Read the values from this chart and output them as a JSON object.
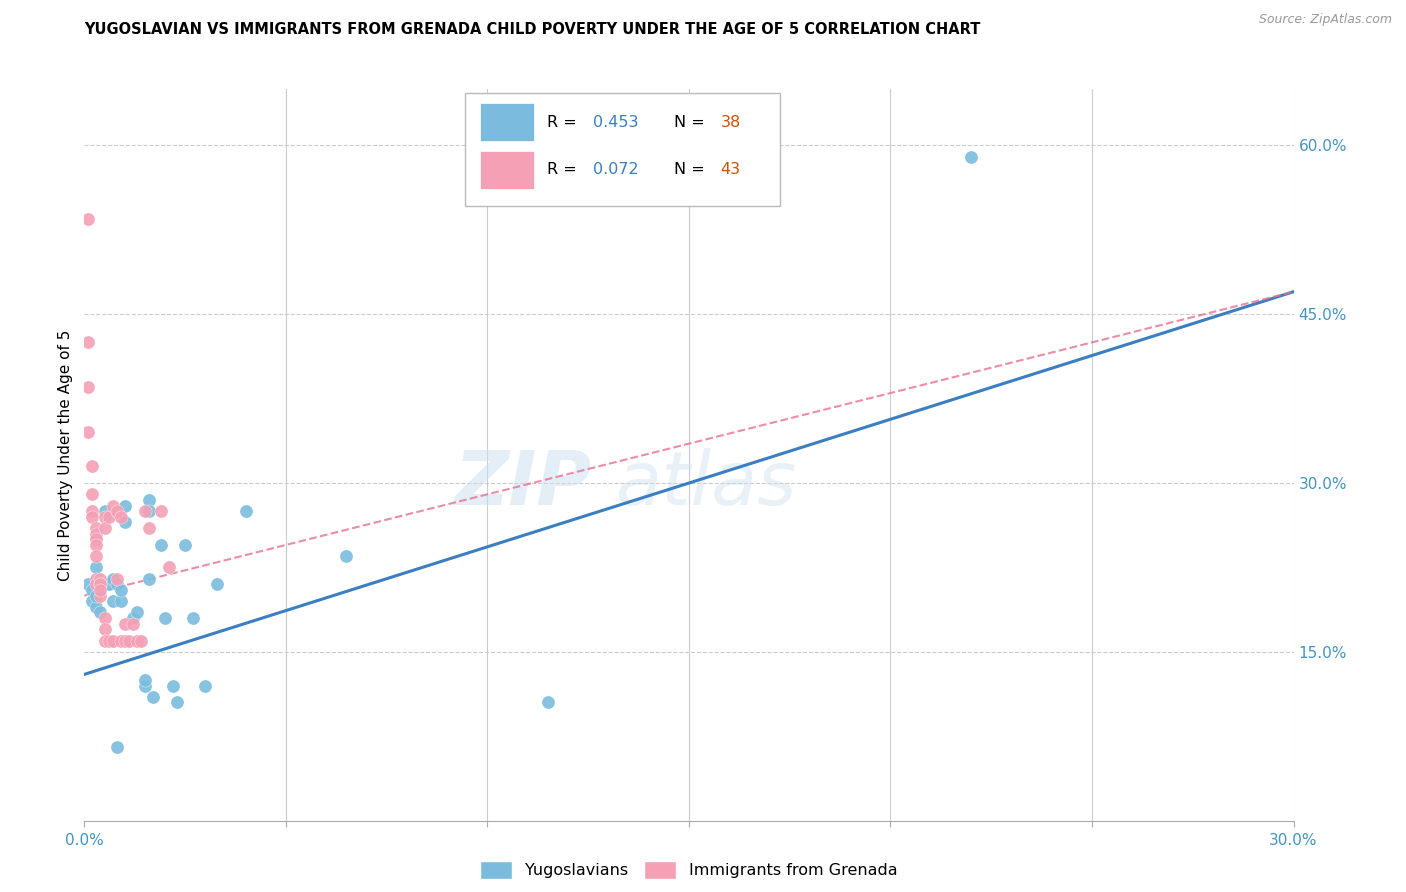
{
  "title": "YUGOSLAVIAN VS IMMIGRANTS FROM GRENADA CHILD POVERTY UNDER THE AGE OF 5 CORRELATION CHART",
  "source": "Source: ZipAtlas.com",
  "ylabel": "Child Poverty Under the Age of 5",
  "xlim": [
    0.0,
    0.3
  ],
  "ylim": [
    0.0,
    0.65
  ],
  "x_ticks": [
    0.0,
    0.05,
    0.1,
    0.15,
    0.2,
    0.25,
    0.3
  ],
  "y_ticks_right": [
    0.15,
    0.3,
    0.45,
    0.6
  ],
  "y_tick_labels_right": [
    "15.0%",
    "30.0%",
    "45.0%",
    "60.0%"
  ],
  "legend_r1": "0.453",
  "legend_n1": "38",
  "legend_r2": "0.072",
  "legend_n2": "43",
  "blue_color": "#7bbcde",
  "pink_color": "#f4a0b5",
  "line_blue": "#3a7fc1",
  "line_pink": "#e87090",
  "watermark_zip": "ZIP",
  "watermark_atlas": "atlas",
  "blue_scatter": [
    [
      0.001,
      0.21
    ],
    [
      0.002,
      0.205
    ],
    [
      0.002,
      0.195
    ],
    [
      0.003,
      0.225
    ],
    [
      0.003,
      0.19
    ],
    [
      0.003,
      0.2
    ],
    [
      0.004,
      0.21
    ],
    [
      0.004,
      0.185
    ],
    [
      0.005,
      0.275
    ],
    [
      0.006,
      0.21
    ],
    [
      0.007,
      0.215
    ],
    [
      0.007,
      0.195
    ],
    [
      0.008,
      0.21
    ],
    [
      0.009,
      0.195
    ],
    [
      0.009,
      0.205
    ],
    [
      0.01,
      0.28
    ],
    [
      0.01,
      0.265
    ],
    [
      0.012,
      0.18
    ],
    [
      0.013,
      0.185
    ],
    [
      0.015,
      0.12
    ],
    [
      0.015,
      0.125
    ],
    [
      0.016,
      0.285
    ],
    [
      0.016,
      0.275
    ],
    [
      0.016,
      0.215
    ],
    [
      0.017,
      0.11
    ],
    [
      0.019,
      0.245
    ],
    [
      0.02,
      0.18
    ],
    [
      0.022,
      0.12
    ],
    [
      0.023,
      0.105
    ],
    [
      0.025,
      0.245
    ],
    [
      0.027,
      0.18
    ],
    [
      0.03,
      0.12
    ],
    [
      0.033,
      0.21
    ],
    [
      0.04,
      0.275
    ],
    [
      0.065,
      0.235
    ],
    [
      0.115,
      0.105
    ],
    [
      0.22,
      0.59
    ],
    [
      0.008,
      0.065
    ]
  ],
  "pink_scatter": [
    [
      0.001,
      0.535
    ],
    [
      0.001,
      0.425
    ],
    [
      0.001,
      0.385
    ],
    [
      0.001,
      0.345
    ],
    [
      0.002,
      0.315
    ],
    [
      0.002,
      0.29
    ],
    [
      0.002,
      0.275
    ],
    [
      0.002,
      0.27
    ],
    [
      0.003,
      0.26
    ],
    [
      0.003,
      0.255
    ],
    [
      0.003,
      0.25
    ],
    [
      0.003,
      0.245
    ],
    [
      0.003,
      0.235
    ],
    [
      0.003,
      0.215
    ],
    [
      0.003,
      0.21
    ],
    [
      0.004,
      0.215
    ],
    [
      0.004,
      0.21
    ],
    [
      0.004,
      0.21
    ],
    [
      0.004,
      0.2
    ],
    [
      0.004,
      0.205
    ],
    [
      0.005,
      0.27
    ],
    [
      0.005,
      0.26
    ],
    [
      0.005,
      0.18
    ],
    [
      0.005,
      0.17
    ],
    [
      0.005,
      0.16
    ],
    [
      0.006,
      0.27
    ],
    [
      0.006,
      0.16
    ],
    [
      0.007,
      0.28
    ],
    [
      0.007,
      0.16
    ],
    [
      0.008,
      0.275
    ],
    [
      0.008,
      0.215
    ],
    [
      0.009,
      0.27
    ],
    [
      0.009,
      0.16
    ],
    [
      0.01,
      0.175
    ],
    [
      0.01,
      0.16
    ],
    [
      0.011,
      0.16
    ],
    [
      0.012,
      0.175
    ],
    [
      0.013,
      0.16
    ],
    [
      0.014,
      0.16
    ],
    [
      0.015,
      0.275
    ],
    [
      0.016,
      0.26
    ],
    [
      0.019,
      0.275
    ],
    [
      0.021,
      0.225
    ]
  ],
  "blue_line_x": [
    0.0,
    0.3
  ],
  "blue_line_y": [
    0.13,
    0.47
  ],
  "pink_line_x": [
    0.0,
    0.3
  ],
  "pink_line_y": [
    0.2,
    0.47
  ]
}
